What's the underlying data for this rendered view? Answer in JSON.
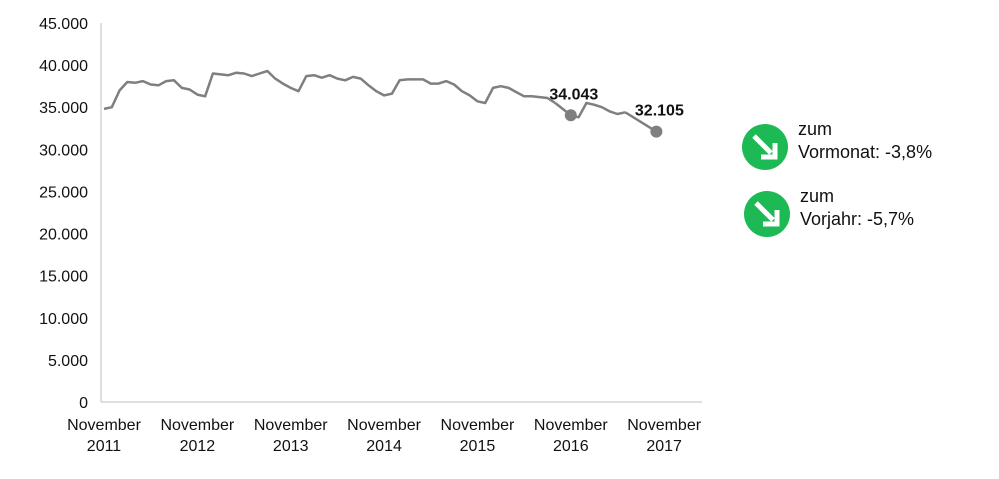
{
  "chart_data": {
    "type": "line",
    "ylim": [
      0,
      45000
    ],
    "y_ticks": [
      "0",
      "5.000",
      "10.000",
      "15.000",
      "20.000",
      "25.000",
      "30.000",
      "35.000",
      "40.000",
      "45.000"
    ],
    "x_ticks": [
      [
        "November",
        "2011"
      ],
      [
        "November",
        "2012"
      ],
      [
        "November",
        "2013"
      ],
      [
        "November",
        "2014"
      ],
      [
        "November",
        "2015"
      ],
      [
        "November",
        "2016"
      ],
      [
        "November",
        "2017"
      ]
    ],
    "series": [
      {
        "color": "#7f7f7f",
        "values": [
          34800,
          35000,
          37000,
          38000,
          37900,
          38100,
          37700,
          37600,
          38100,
          38200,
          37300,
          37100,
          36500,
          36300,
          39000,
          38900,
          38800,
          39100,
          39000,
          38700,
          39000,
          39300,
          38400,
          37800,
          37300,
          36900,
          38700,
          38800,
          38500,
          38800,
          38400,
          38200,
          38600,
          38400,
          37600,
          36900,
          36400,
          36600,
          38200,
          38300,
          38300,
          38300,
          37800,
          37800,
          38100,
          37700,
          36900,
          36400,
          35700,
          35500,
          37300,
          37500,
          37300,
          36800,
          36300,
          36300,
          36200,
          36100,
          35500,
          34700,
          34043,
          33800,
          35500,
          35300,
          35000,
          34500,
          34200,
          34400,
          34400,
          33500,
          33000,
          32105
        ],
        "gaps": [
          [
            58,
            60
          ],
          [
            67,
            71
          ]
        ]
      }
    ],
    "markers": [
      {
        "index": 60,
        "label": "34.043"
      },
      {
        "index": 71,
        "label": "32.105"
      }
    ],
    "grid": false,
    "legend": "none"
  },
  "badges": [
    {
      "icon": "down-arrow-icon",
      "color": "#1db954",
      "line1": "zum",
      "line2": "Vormonat:  -3,8%"
    },
    {
      "icon": "down-arrow-icon",
      "color": "#1db954",
      "line1": "zum",
      "line2": "Vorjahr: -5,7%"
    }
  ]
}
